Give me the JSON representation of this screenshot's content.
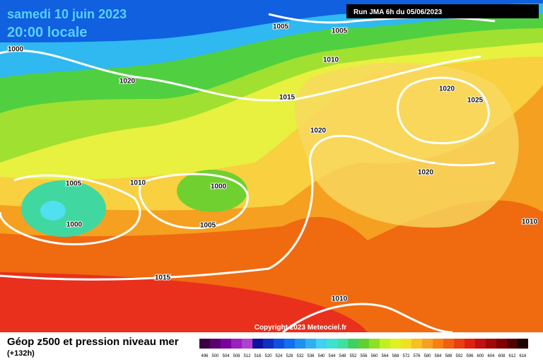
{
  "header": {
    "date": "samedi 10 juin 2023",
    "time": "20:00 locale",
    "run": "Run JMA 6h du 05/06/2023"
  },
  "isobar_labels": [
    "1005",
    "1005",
    "1000",
    "1010",
    "1020",
    "1015",
    "1020",
    "1020",
    "1025",
    "1020",
    "1010",
    "1005",
    "1000",
    "1000",
    "1005",
    "1010",
    "1015",
    "1010"
  ],
  "copyright": "Copyright 2023 Meteociel.fr",
  "footer": {
    "title": "Géop z500 et pression niveau mer",
    "lead": "(+132h)"
  },
  "scale": {
    "values": [
      496,
      500,
      504,
      508,
      512,
      516,
      520,
      524,
      528,
      532,
      536,
      540,
      544,
      548,
      552,
      556,
      560,
      564,
      568,
      572,
      576,
      580,
      584,
      588,
      592,
      596,
      600,
      604,
      608,
      612,
      616
    ],
    "colors": [
      "#3a0040",
      "#5a0070",
      "#7a00a0",
      "#9a20c0",
      "#b040d0",
      "#1010a0",
      "#1030c0",
      "#1050e0",
      "#1070f0",
      "#2090f0",
      "#30b0f0",
      "#40d0f0",
      "#40e0d0",
      "#40e0a0",
      "#40d060",
      "#60d030",
      "#90e020",
      "#c0f020",
      "#e0f020",
      "#f0e020",
      "#f8c020",
      "#f8a020",
      "#f88010",
      "#f06010",
      "#e84010",
      "#e02010",
      "#c01010",
      "#a00808",
      "#800000",
      "#500000",
      "#200000"
    ]
  }
}
